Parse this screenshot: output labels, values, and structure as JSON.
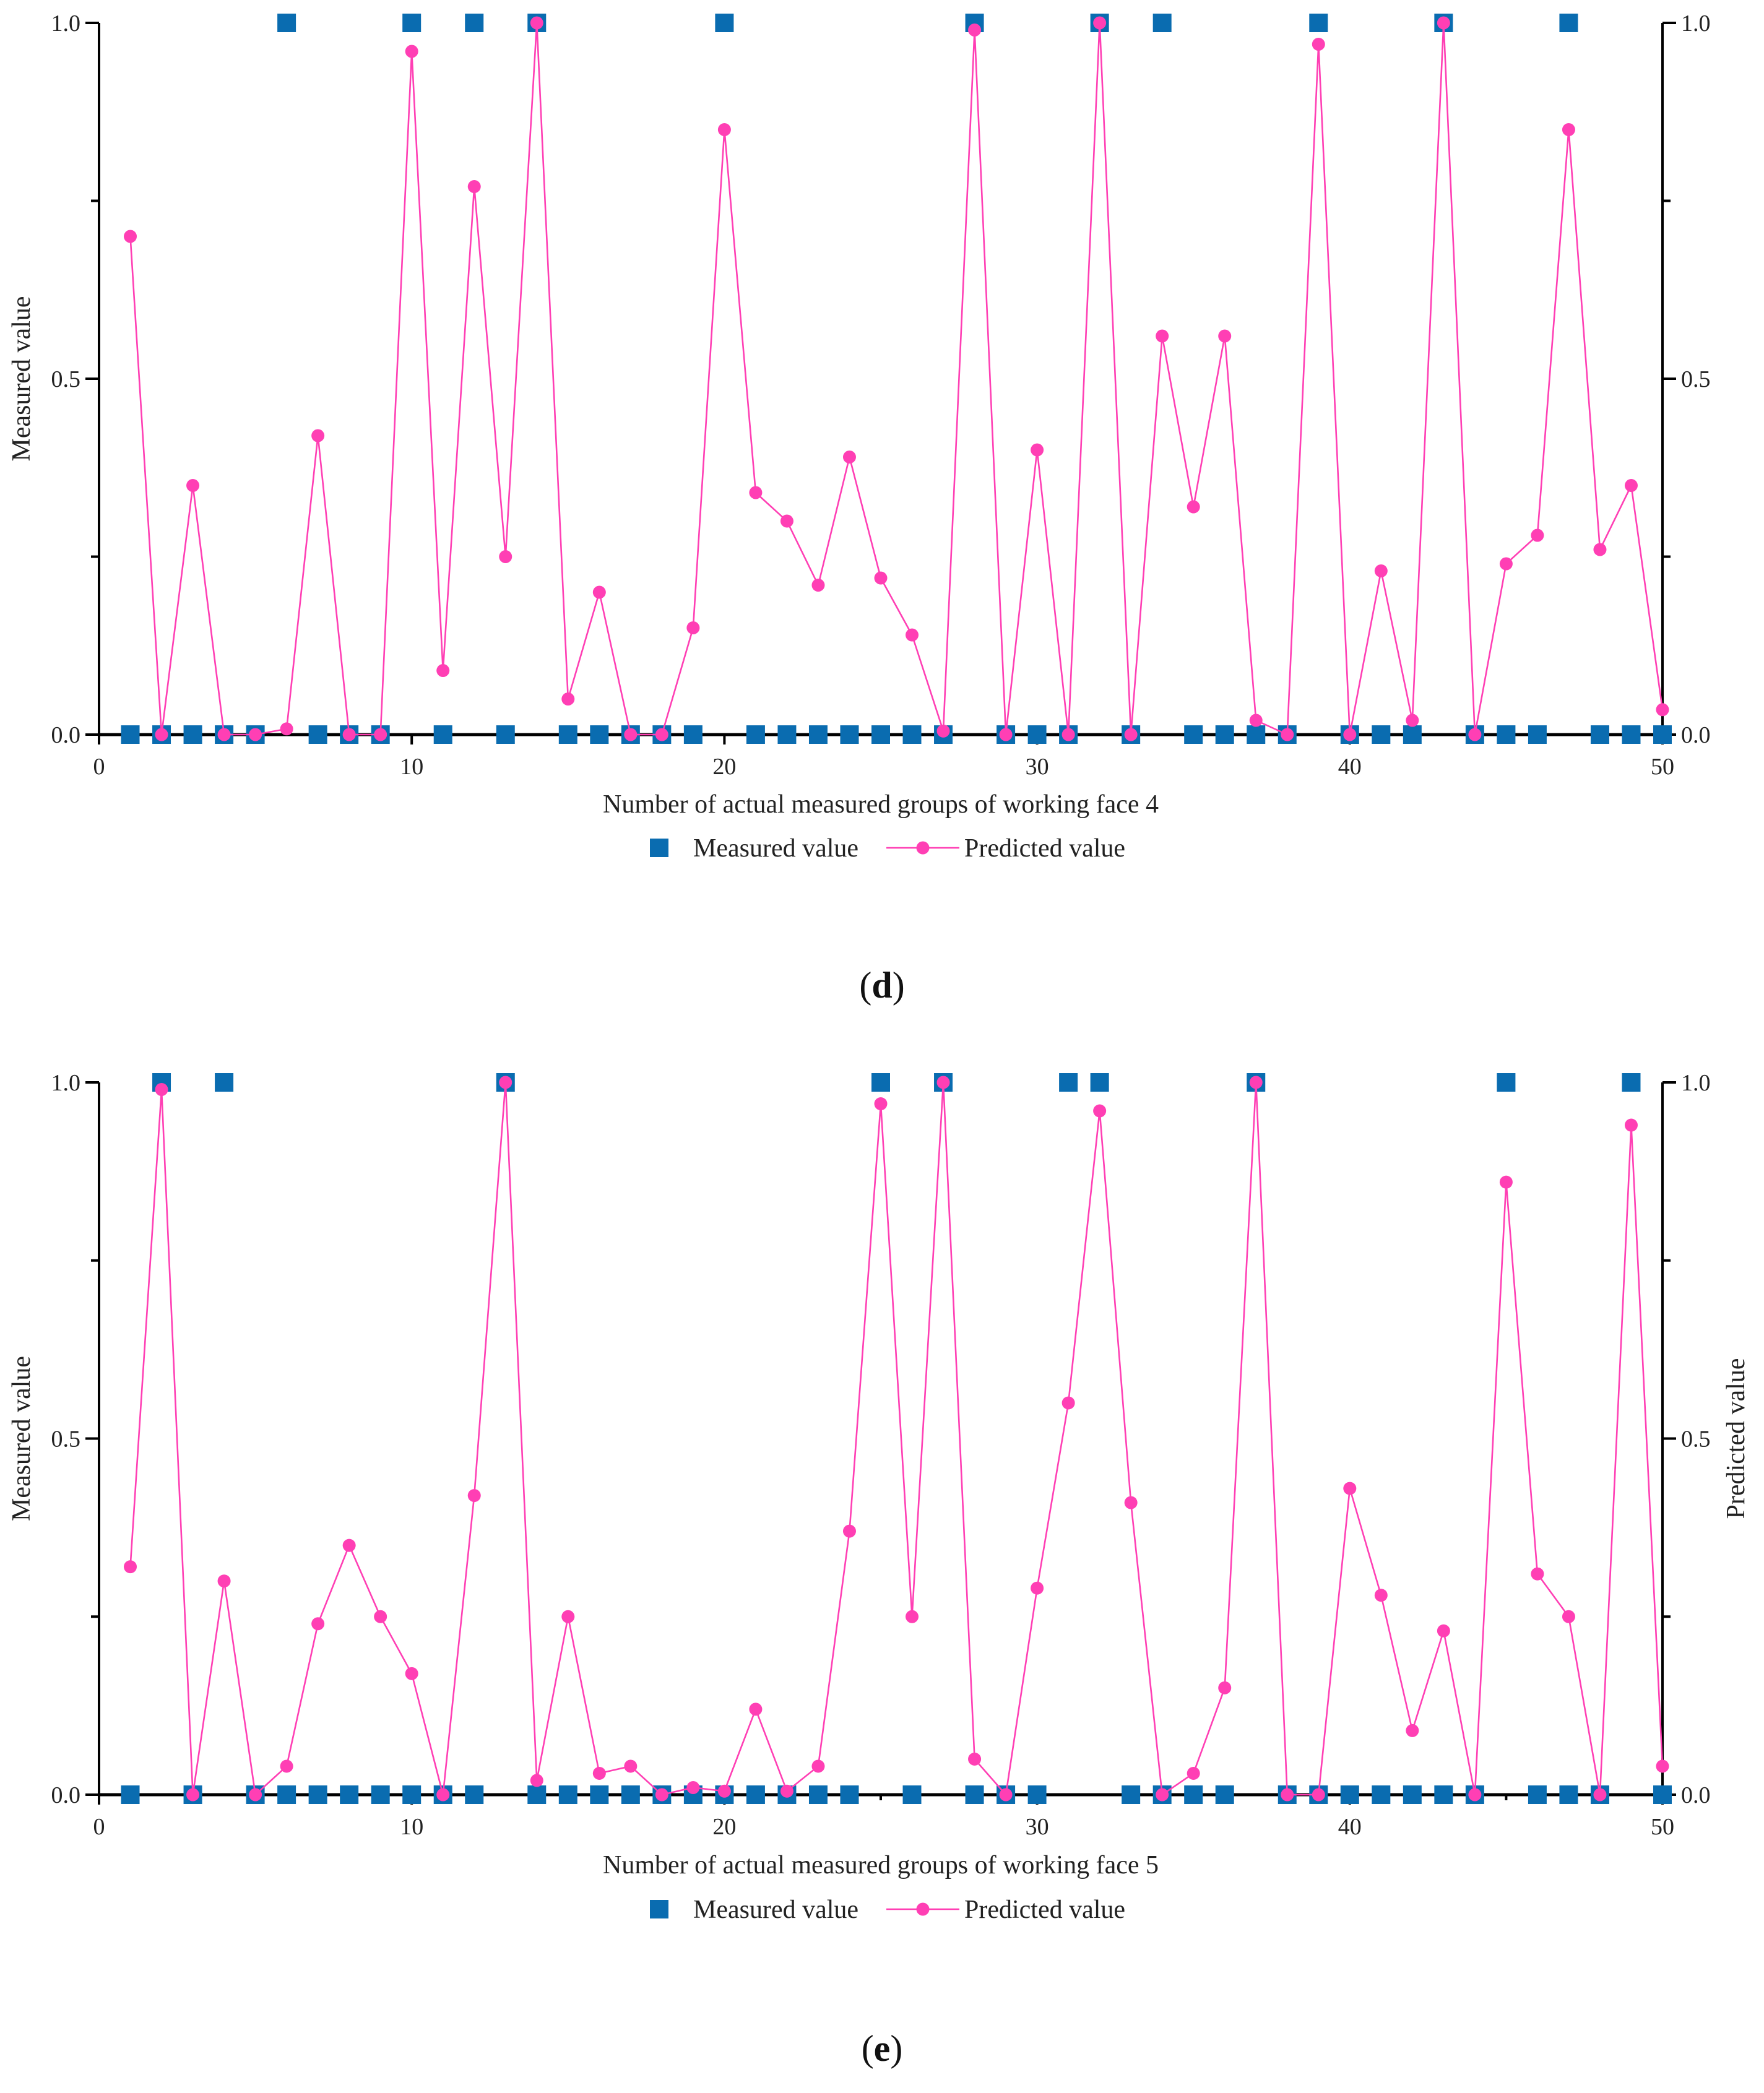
{
  "colors": {
    "measured": "#0a6cb0",
    "predicted": "#ff3fb4",
    "axis": "#000000"
  },
  "markers": {
    "measured": "square",
    "predicted": "circle"
  },
  "chart_data": [
    {
      "type": "scatter+line",
      "panel_label": "d",
      "xlabel": "Number of actual measured groups of working face 4",
      "ylabel_left": "Measured value",
      "ylabel_right": "",
      "xlim": [
        0,
        50
      ],
      "ylim": [
        0,
        1
      ],
      "x_ticks": [
        0,
        10,
        20,
        30,
        40,
        50
      ],
      "y_ticks": [
        0.0,
        0.5,
        1.0
      ],
      "x_tick_labels": [
        "0",
        "10",
        "20",
        "30",
        "40",
        "50"
      ],
      "y_tick_labels": [
        "0.0",
        "0.5",
        "1.0"
      ],
      "grid": false,
      "legend_position": "bottom-center",
      "series": [
        {
          "name": "Measured value",
          "style": "markers",
          "x": [
            1,
            2,
            3,
            4,
            5,
            6,
            7,
            8,
            9,
            10,
            11,
            12,
            13,
            14,
            15,
            16,
            17,
            18,
            19,
            20,
            21,
            22,
            23,
            24,
            25,
            26,
            27,
            28,
            29,
            30,
            31,
            32,
            33,
            34,
            35,
            36,
            37,
            38,
            39,
            40,
            41,
            42,
            43,
            44,
            45,
            46,
            47,
            48,
            49,
            50
          ],
          "y": [
            0,
            0,
            0,
            0,
            0,
            1,
            0,
            0,
            0,
            1,
            0,
            1,
            0,
            1,
            0,
            0,
            0,
            0,
            0,
            1,
            0,
            0,
            0,
            0,
            0,
            0,
            0,
            1,
            0,
            0,
            0,
            1,
            0,
            1,
            0,
            0,
            0,
            0,
            1,
            0,
            0,
            0,
            1,
            0,
            0,
            0,
            1,
            0,
            0,
            0
          ]
        },
        {
          "name": "Predicted value",
          "style": "line+markers",
          "x": [
            1,
            2,
            3,
            4,
            5,
            6,
            7,
            8,
            9,
            10,
            11,
            12,
            13,
            14,
            15,
            16,
            17,
            18,
            19,
            20,
            21,
            22,
            23,
            24,
            25,
            26,
            27,
            28,
            29,
            30,
            31,
            32,
            33,
            34,
            35,
            36,
            37,
            38,
            39,
            40,
            41,
            42,
            43,
            44,
            45,
            46,
            47,
            48,
            49,
            50
          ],
          "y": [
            0.7,
            0.0,
            0.35,
            0.0,
            0.0,
            0.008,
            0.42,
            0.0,
            0.0,
            0.96,
            0.09,
            0.77,
            0.25,
            1.0,
            0.05,
            0.2,
            0.0,
            0.0,
            0.15,
            0.85,
            0.34,
            0.3,
            0.21,
            0.39,
            0.22,
            0.14,
            0.005,
            0.99,
            0.0,
            0.4,
            0.0,
            1.0,
            0.0,
            0.56,
            0.32,
            0.56,
            0.02,
            0.0,
            0.97,
            0.0,
            0.23,
            0.02,
            1.0,
            0.0,
            0.24,
            0.28,
            0.85,
            0.26,
            0.35,
            0.035
          ]
        }
      ]
    },
    {
      "type": "scatter+line",
      "panel_label": "e",
      "xlabel": "Number of actual measured groups of working face 5",
      "ylabel_left": "Measured value",
      "ylabel_right": "Predicted value",
      "xlim": [
        0,
        50
      ],
      "ylim": [
        0,
        1
      ],
      "x_ticks": [
        0,
        10,
        20,
        30,
        40,
        50
      ],
      "y_ticks": [
        0.0,
        0.5,
        1.0
      ],
      "x_tick_labels": [
        "0",
        "10",
        "20",
        "30",
        "40",
        "50"
      ],
      "y_tick_labels": [
        "0.0",
        "0.5",
        "1.0"
      ],
      "grid": false,
      "legend_position": "bottom-center",
      "series": [
        {
          "name": "Measured value",
          "style": "markers",
          "x": [
            1,
            2,
            3,
            4,
            5,
            6,
            7,
            8,
            9,
            10,
            11,
            12,
            13,
            14,
            15,
            16,
            17,
            18,
            19,
            20,
            21,
            22,
            23,
            24,
            25,
            26,
            27,
            28,
            29,
            30,
            31,
            32,
            33,
            34,
            35,
            36,
            37,
            38,
            39,
            40,
            41,
            42,
            43,
            44,
            45,
            46,
            47,
            48,
            49,
            50
          ],
          "y": [
            0,
            1,
            0,
            1,
            0,
            0,
            0,
            0,
            0,
            0,
            0,
            0,
            1,
            0,
            0,
            0,
            0,
            0,
            0,
            0,
            0,
            0,
            0,
            0,
            1,
            0,
            1,
            0,
            0,
            0,
            1,
            1,
            0,
            0,
            0,
            0,
            1,
            0,
            0,
            0,
            0,
            0,
            0,
            0,
            1,
            0,
            0,
            0,
            1,
            0
          ]
        },
        {
          "name": "Predicted value",
          "style": "line+markers",
          "x": [
            1,
            2,
            3,
            4,
            5,
            6,
            7,
            8,
            9,
            10,
            11,
            12,
            13,
            14,
            15,
            16,
            17,
            18,
            19,
            20,
            21,
            22,
            23,
            24,
            25,
            26,
            27,
            28,
            29,
            30,
            31,
            32,
            33,
            34,
            35,
            36,
            37,
            38,
            39,
            40,
            41,
            42,
            43,
            44,
            45,
            46,
            47,
            48,
            49,
            50
          ],
          "y": [
            0.32,
            0.99,
            0.0,
            0.3,
            0.0,
            0.04,
            0.24,
            0.35,
            0.25,
            0.17,
            0.0,
            0.42,
            1.0,
            0.02,
            0.25,
            0.03,
            0.04,
            0.0,
            0.01,
            0.005,
            0.12,
            0.005,
            0.04,
            0.37,
            0.97,
            0.25,
            1.0,
            0.05,
            0.0,
            0.29,
            0.55,
            0.96,
            0.41,
            0.0,
            0.03,
            0.15,
            1.0,
            0.0,
            0.0,
            0.43,
            0.28,
            0.09,
            0.23,
            0.0,
            0.86,
            0.31,
            0.25,
            0.0,
            0.94,
            0.04
          ]
        }
      ]
    }
  ]
}
